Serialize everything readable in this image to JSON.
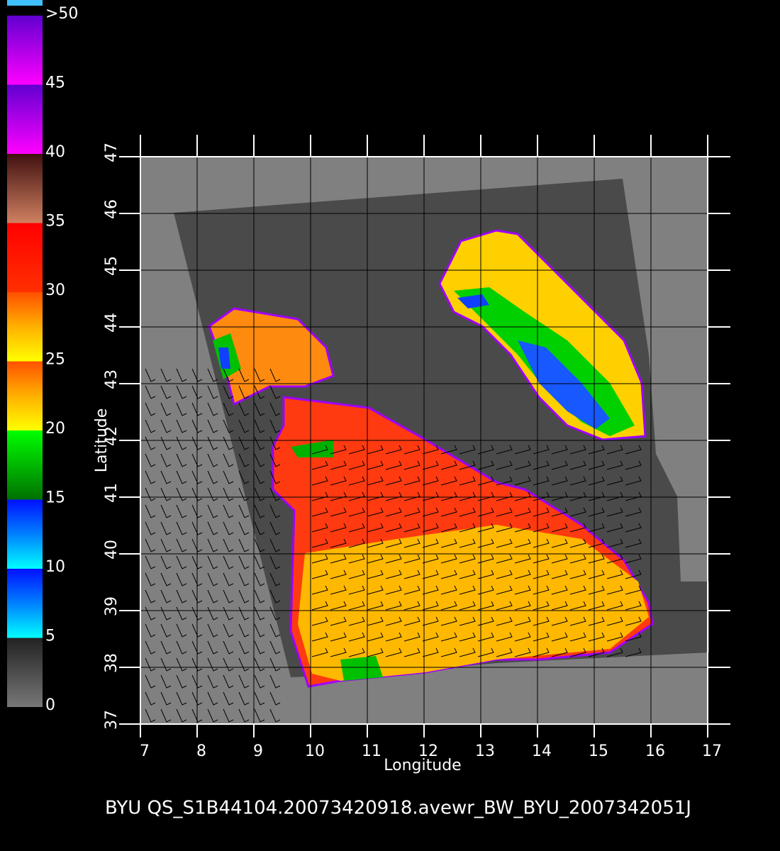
{
  "colorbar": {
    "ylim": [
      0,
      50
    ],
    "ticks": [
      0,
      5,
      10,
      15,
      20,
      25,
      30,
      35,
      40,
      45,
      {
        "value": 50,
        "label": ">50"
      }
    ]
  },
  "map": {
    "xlabel": "Longitude",
    "ylabel": "Latitude",
    "xlim": [
      7,
      17
    ],
    "ylim": [
      37,
      47
    ],
    "xticks": [
      7,
      8,
      9,
      10,
      11,
      12,
      13,
      14,
      15,
      16,
      17
    ],
    "yticks": [
      37,
      38,
      39,
      40,
      41,
      42,
      43,
      44,
      45,
      46,
      47
    ]
  },
  "footer": "BYU  QS_S1B44104.20073420918.avewr_BW_BYU_2007342051J"
}
